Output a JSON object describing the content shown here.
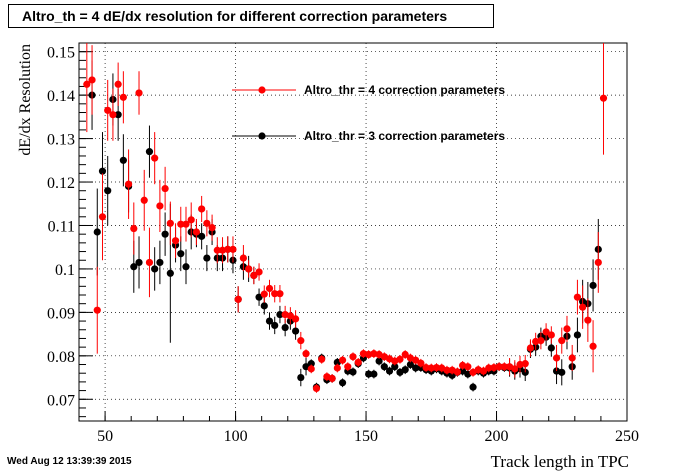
{
  "title": "Altro_th = 4 dE/dx resolution for different correction parameters",
  "datestamp": "Wed Aug 12 13:39:39 2015",
  "chart_data": {
    "type": "scatter",
    "xlabel": "Track length in TPC",
    "ylabel": "dE/dx Resolution",
    "xlim": [
      40,
      250
    ],
    "ylim": [
      0.065,
      0.152
    ],
    "xticks": [
      "50",
      "100",
      "150",
      "200",
      "250"
    ],
    "yticks": [
      "0.07",
      "0.08",
      "0.09",
      "0.1",
      "0.11",
      "0.12",
      "0.13",
      "0.14",
      "0.15"
    ],
    "grid": true,
    "legend_position": "top-right",
    "series": [
      {
        "name": "Altro_thr = 4 correction parameters",
        "color": "#ff0000",
        "points": [
          [
            43,
            0.1425,
            0.011
          ],
          [
            45,
            0.1435,
            0.008
          ],
          [
            47,
            0.0905,
            0.01
          ],
          [
            49,
            0.112,
            0.01
          ],
          [
            51,
            0.1365,
            0.007
          ],
          [
            53,
            0.1355,
            0.006
          ],
          [
            55,
            0.1425,
            0.005
          ],
          [
            57,
            0.1395,
            0.006
          ],
          [
            59,
            0.1195,
            0.008
          ],
          [
            61,
            0.1093,
            0.006
          ],
          [
            63,
            0.1405,
            0.005
          ],
          [
            65,
            0.1158,
            0.007
          ],
          [
            67,
            0.1015,
            0.008
          ],
          [
            69,
            0.1255,
            0.006
          ],
          [
            71,
            0.1145,
            0.006
          ],
          [
            73,
            0.1185,
            0.005
          ],
          [
            75,
            0.1105,
            0.005
          ],
          [
            77,
            0.1065,
            0.004
          ],
          [
            79,
            0.1103,
            0.004
          ],
          [
            81,
            0.1103,
            0.004
          ],
          [
            83,
            0.1113,
            0.004
          ],
          [
            85,
            0.1085,
            0.003
          ],
          [
            87,
            0.1138,
            0.003
          ],
          [
            89,
            0.1105,
            0.003
          ],
          [
            91,
            0.1095,
            0.003
          ],
          [
            93,
            0.1043,
            0.003
          ],
          [
            95,
            0.1043,
            0.003
          ],
          [
            97,
            0.1045,
            0.003
          ],
          [
            99,
            0.1045,
            0.003
          ],
          [
            101,
            0.093,
            0.003
          ],
          [
            103,
            0.1025,
            0.003
          ],
          [
            105,
            0.1,
            0.002
          ],
          [
            107,
            0.0985,
            0.002
          ],
          [
            109,
            0.0993,
            0.002
          ],
          [
            111,
            0.0942,
            0.002
          ],
          [
            113,
            0.0955,
            0.002
          ],
          [
            115,
            0.0943,
            0.002
          ],
          [
            117,
            0.0943,
            0.002
          ],
          [
            119,
            0.0895,
            0.002
          ],
          [
            121,
            0.0892,
            0.002
          ],
          [
            123,
            0.0885,
            0.002
          ],
          [
            125,
            0.0835,
            0.002
          ],
          [
            127,
            0.0805,
            0.001
          ],
          [
            129,
            0.077,
            0.001
          ],
          [
            131,
            0.0725,
            0.001
          ],
          [
            133,
            0.0792,
            0.001
          ],
          [
            135,
            0.0752,
            0.001
          ],
          [
            137,
            0.0748,
            0.001
          ],
          [
            139,
            0.0772,
            0.001
          ],
          [
            141,
            0.079,
            0.001
          ],
          [
            143,
            0.0775,
            0.001
          ],
          [
            145,
            0.0798,
            0.001
          ],
          [
            147,
            0.0785,
            0.001
          ],
          [
            149,
            0.0805,
            0.001
          ],
          [
            151,
            0.0803,
            0.001
          ],
          [
            153,
            0.0805,
            0.001
          ],
          [
            155,
            0.0803,
            0.001
          ],
          [
            157,
            0.0798,
            0.001
          ],
          [
            159,
            0.0793,
            0.001
          ],
          [
            161,
            0.0788,
            0.001
          ],
          [
            163,
            0.0792,
            0.001
          ],
          [
            165,
            0.0803,
            0.001
          ],
          [
            167,
            0.0795,
            0.001
          ],
          [
            169,
            0.079,
            0.001
          ],
          [
            171,
            0.0783,
            0.001
          ],
          [
            173,
            0.0773,
            0.001
          ],
          [
            175,
            0.0772,
            0.001
          ],
          [
            177,
            0.0773,
            0.001
          ],
          [
            179,
            0.0772,
            0.001
          ],
          [
            181,
            0.0767,
            0.001
          ],
          [
            183,
            0.0767,
            0.001
          ],
          [
            185,
            0.0763,
            0.001
          ],
          [
            187,
            0.0778,
            0.001
          ],
          [
            189,
            0.0775,
            0.001
          ],
          [
            191,
            0.0762,
            0.001
          ],
          [
            193,
            0.0768,
            0.001
          ],
          [
            195,
            0.0765,
            0.001
          ],
          [
            197,
            0.0772,
            0.001
          ],
          [
            199,
            0.0773,
            0.001
          ],
          [
            201,
            0.0775,
            0.001
          ],
          [
            203,
            0.0775,
            0.001
          ],
          [
            205,
            0.0775,
            0.002
          ],
          [
            207,
            0.077,
            0.002
          ],
          [
            209,
            0.078,
            0.002
          ],
          [
            211,
            0.0782,
            0.002
          ],
          [
            213,
            0.0818,
            0.002
          ],
          [
            215,
            0.0833,
            0.002
          ],
          [
            217,
            0.0835,
            0.002
          ],
          [
            219,
            0.0855,
            0.002
          ],
          [
            221,
            0.0848,
            0.002
          ],
          [
            223,
            0.0795,
            0.003
          ],
          [
            225,
            0.0835,
            0.003
          ],
          [
            227,
            0.0862,
            0.003
          ],
          [
            229,
            0.0795,
            0.003
          ],
          [
            231,
            0.0935,
            0.004
          ],
          [
            233,
            0.0912,
            0.005
          ],
          [
            235,
            0.0882,
            0.005
          ],
          [
            237,
            0.0822,
            0.006
          ],
          [
            239,
            0.1015,
            0.007
          ],
          [
            241,
            0.1393,
            0.013
          ]
        ]
      },
      {
        "name": "Altro_thr = 3 correction parameters",
        "color": "#000000",
        "points": [
          [
            45,
            0.14,
            0.008
          ],
          [
            47,
            0.1085,
            0.01
          ],
          [
            49,
            0.1225,
            0.009
          ],
          [
            51,
            0.118,
            0.008
          ],
          [
            53,
            0.139,
            0.006
          ],
          [
            55,
            0.1355,
            0.006
          ],
          [
            57,
            0.125,
            0.006
          ],
          [
            59,
            0.119,
            0.006
          ],
          [
            61,
            0.1005,
            0.006
          ],
          [
            63,
            0.1015,
            0.006
          ],
          [
            67,
            0.127,
            0.006
          ],
          [
            69,
            0.1,
            0.005
          ],
          [
            71,
            0.1015,
            0.005
          ],
          [
            73,
            0.108,
            0.005
          ],
          [
            75,
            0.099,
            0.016
          ],
          [
            77,
            0.1055,
            0.004
          ],
          [
            79,
            0.1035,
            0.004
          ],
          [
            81,
            0.1005,
            0.004
          ],
          [
            83,
            0.1085,
            0.004
          ],
          [
            85,
            0.108,
            0.003
          ],
          [
            87,
            0.1075,
            0.003
          ],
          [
            89,
            0.1025,
            0.003
          ],
          [
            91,
            0.1085,
            0.003
          ],
          [
            93,
            0.1025,
            0.003
          ],
          [
            95,
            0.1025,
            0.003
          ],
          [
            97,
            0.1045,
            0.003
          ],
          [
            99,
            0.102,
            0.003
          ],
          [
            101,
            0.093,
            0.003
          ],
          [
            103,
            0.1005,
            0.003
          ],
          [
            105,
            0.1,
            0.003
          ],
          [
            107,
            0.0985,
            0.002
          ],
          [
            109,
            0.0935,
            0.002
          ],
          [
            111,
            0.0915,
            0.002
          ],
          [
            113,
            0.088,
            0.002
          ],
          [
            115,
            0.087,
            0.002
          ],
          [
            117,
            0.0895,
            0.002
          ],
          [
            119,
            0.0865,
            0.002
          ],
          [
            121,
            0.088,
            0.002
          ],
          [
            123,
            0.0857,
            0.002
          ],
          [
            125,
            0.075,
            0.002
          ],
          [
            127,
            0.0775,
            0.002
          ],
          [
            129,
            0.0782,
            0.001
          ],
          [
            131,
            0.0728,
            0.001
          ],
          [
            133,
            0.0795,
            0.001
          ],
          [
            135,
            0.0745,
            0.001
          ],
          [
            137,
            0.0748,
            0.001
          ],
          [
            139,
            0.0785,
            0.001
          ],
          [
            141,
            0.0738,
            0.001
          ],
          [
            143,
            0.0765,
            0.001
          ],
          [
            145,
            0.0763,
            0.001
          ],
          [
            147,
            0.0782,
            0.001
          ],
          [
            149,
            0.0795,
            0.001
          ],
          [
            151,
            0.0758,
            0.001
          ],
          [
            153,
            0.0758,
            0.001
          ],
          [
            155,
            0.0788,
            0.001
          ],
          [
            157,
            0.0775,
            0.001
          ],
          [
            159,
            0.0765,
            0.001
          ],
          [
            161,
            0.0775,
            0.001
          ],
          [
            163,
            0.0762,
            0.001
          ],
          [
            165,
            0.0768,
            0.001
          ],
          [
            167,
            0.078,
            0.001
          ],
          [
            169,
            0.0772,
            0.001
          ],
          [
            171,
            0.0773,
            0.001
          ],
          [
            173,
            0.0768,
            0.001
          ],
          [
            175,
            0.0765,
            0.001
          ],
          [
            177,
            0.077,
            0.001
          ],
          [
            179,
            0.0765,
            0.001
          ],
          [
            181,
            0.076,
            0.001
          ],
          [
            183,
            0.0755,
            0.001
          ],
          [
            185,
            0.0762,
            0.001
          ],
          [
            187,
            0.0765,
            0.001
          ],
          [
            189,
            0.0758,
            0.001
          ],
          [
            191,
            0.0728,
            0.001
          ],
          [
            193,
            0.0765,
            0.001
          ],
          [
            195,
            0.076,
            0.001
          ],
          [
            197,
            0.0765,
            0.001
          ],
          [
            199,
            0.0765,
            0.001
          ],
          [
            201,
            0.0775,
            0.001
          ],
          [
            203,
            0.0773,
            0.001
          ],
          [
            205,
            0.0772,
            0.002
          ],
          [
            207,
            0.0765,
            0.002
          ],
          [
            209,
            0.077,
            0.002
          ],
          [
            211,
            0.0762,
            0.002
          ],
          [
            213,
            0.0815,
            0.002
          ],
          [
            215,
            0.082,
            0.002
          ],
          [
            217,
            0.0845,
            0.002
          ],
          [
            219,
            0.0843,
            0.002
          ],
          [
            221,
            0.0818,
            0.002
          ],
          [
            223,
            0.0765,
            0.003
          ],
          [
            225,
            0.0762,
            0.003
          ],
          [
            227,
            0.0845,
            0.003
          ],
          [
            229,
            0.0775,
            0.003
          ],
          [
            231,
            0.0848,
            0.004
          ],
          [
            233,
            0.0925,
            0.005
          ],
          [
            235,
            0.092,
            0.005
          ],
          [
            237,
            0.0962,
            0.006
          ],
          [
            239,
            0.1045,
            0.007
          ]
        ]
      }
    ]
  }
}
